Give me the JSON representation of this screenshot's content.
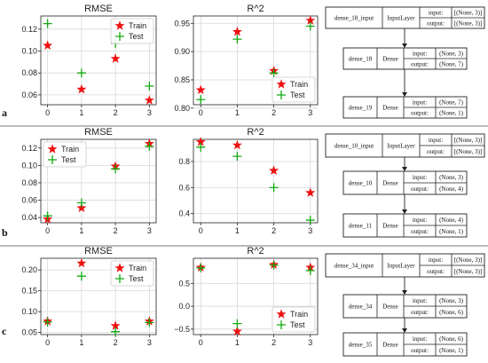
{
  "colors": {
    "train": "#ee1111",
    "test": "#11aa11",
    "grid": "#d8d8d8",
    "axis": "#222222",
    "separator": "#777777"
  },
  "chart_data": [
    {
      "panel": "a",
      "metric": "rmse",
      "type": "scatter",
      "title": "RMSE",
      "x": [
        0,
        1,
        2,
        3
      ],
      "xlim": [
        -0.2,
        3.2
      ],
      "ylim": [
        0.051,
        0.132
      ],
      "xticks": [
        0,
        1,
        2,
        3
      ],
      "yticks": [
        0.06,
        0.08,
        0.1,
        0.12
      ],
      "yticklabels": [
        "0.06",
        "0.08",
        "0.10",
        "0.12"
      ],
      "series": [
        {
          "name": "Train",
          "marker": "star",
          "values": [
            0.105,
            0.065,
            0.093,
            0.055
          ]
        },
        {
          "name": "Test",
          "marker": "plus",
          "values": [
            0.125,
            0.08,
            0.107,
            0.068
          ]
        }
      ],
      "legend": "top-right",
      "grid": true
    },
    {
      "panel": "a",
      "metric": "r2",
      "type": "scatter",
      "title": "R^2",
      "x": [
        0,
        1,
        2,
        3
      ],
      "xlim": [
        -0.2,
        3.2
      ],
      "ylim": [
        0.806,
        0.963
      ],
      "xticks": [
        0,
        1,
        2,
        3
      ],
      "yticks": [
        0.8,
        0.85,
        0.9,
        0.95
      ],
      "yticklabels": [
        "0.80",
        "0.85",
        "0.90",
        "0.95"
      ],
      "series": [
        {
          "name": "Train",
          "marker": "star",
          "values": [
            0.832,
            0.935,
            0.866,
            0.955
          ]
        },
        {
          "name": "Test",
          "marker": "plus",
          "values": [
            0.815,
            0.922,
            0.862,
            0.945
          ]
        }
      ],
      "legend": "bottom-right",
      "grid": true
    },
    {
      "panel": "b",
      "metric": "rmse",
      "type": "scatter",
      "title": "RMSE",
      "x": [
        0,
        1,
        2,
        3
      ],
      "xlim": [
        -0.2,
        3.2
      ],
      "ylim": [
        0.034,
        0.13
      ],
      "xticks": [
        0,
        1,
        2,
        3
      ],
      "yticks": [
        0.04,
        0.06,
        0.08,
        0.1,
        0.12
      ],
      "yticklabels": [
        "0.04",
        "0.06",
        "0.08",
        "0.10",
        "0.12"
      ],
      "series": [
        {
          "name": "Train",
          "marker": "star",
          "values": [
            0.038,
            0.051,
            0.099,
            0.125
          ]
        },
        {
          "name": "Test",
          "marker": "plus",
          "values": [
            0.042,
            0.057,
            0.096,
            0.122
          ]
        }
      ],
      "legend": "top-left",
      "grid": true
    },
    {
      "panel": "b",
      "metric": "r2",
      "type": "scatter",
      "title": "R^2",
      "x": [
        0,
        1,
        2,
        3
      ],
      "xlim": [
        -0.2,
        3.2
      ],
      "ylim": [
        0.33,
        0.97
      ],
      "xticks": [
        0,
        1,
        2,
        3
      ],
      "yticks": [
        0.4,
        0.6,
        0.8
      ],
      "yticklabels": [
        "0.4",
        "0.6",
        "0.8"
      ],
      "series": [
        {
          "name": "Train",
          "marker": "star",
          "values": [
            0.95,
            0.925,
            0.73,
            0.56
          ]
        },
        {
          "name": "Test",
          "marker": "plus",
          "values": [
            0.91,
            0.84,
            0.6,
            0.35
          ]
        }
      ],
      "legend": "none",
      "grid": true
    },
    {
      "panel": "c",
      "metric": "rmse",
      "type": "scatter",
      "title": "RMSE",
      "x": [
        0,
        1,
        2,
        3
      ],
      "xlim": [
        -0.2,
        3.2
      ],
      "ylim": [
        0.045,
        0.228
      ],
      "xticks": [
        0,
        1,
        2,
        3
      ],
      "yticks": [
        0.05,
        0.1,
        0.15,
        0.2
      ],
      "yticklabels": [
        "0.05",
        "0.10",
        "0.15",
        "0.20"
      ],
      "series": [
        {
          "name": "Train",
          "marker": "star",
          "values": [
            0.077,
            0.216,
            0.066,
            0.077
          ]
        },
        {
          "name": "Test",
          "marker": "plus",
          "values": [
            0.075,
            0.185,
            0.052,
            0.074
          ]
        }
      ],
      "legend": "top-right",
      "grid": true
    },
    {
      "panel": "c",
      "metric": "r2",
      "type": "scatter",
      "title": "R^2",
      "x": [
        0,
        1,
        2,
        3
      ],
      "xlim": [
        -0.2,
        3.2
      ],
      "ylim": [
        -0.62,
        1.05
      ],
      "xticks": [
        0,
        1,
        2,
        3
      ],
      "yticks": [
        -0.5,
        0.0,
        0.5
      ],
      "yticklabels": [
        "−0.5",
        "0.0",
        "0.5"
      ],
      "series": [
        {
          "name": "Train",
          "marker": "star",
          "values": [
            0.85,
            -0.55,
            0.91,
            0.85
          ]
        },
        {
          "name": "Test",
          "marker": "plus",
          "values": [
            0.84,
            -0.38,
            0.9,
            0.78
          ]
        }
      ],
      "legend": "bottom-right",
      "grid": true
    }
  ],
  "panels": [
    {
      "label": "a",
      "layers": [
        {
          "name": "dense_18_input",
          "type": "InputLayer",
          "input": "[(None, 3)]",
          "output": "[(None, 3)]"
        },
        {
          "name": "dense_18",
          "type": "Dense",
          "input": "(None, 3)",
          "output": "(None, 7)"
        },
        {
          "name": "dense_19",
          "type": "Dense",
          "input": "(None, 7)",
          "output": "(None, 1)"
        }
      ]
    },
    {
      "label": "b",
      "layers": [
        {
          "name": "dense_10_input",
          "type": "InputLayer",
          "input": "[(None, 3)]",
          "output": "[(None, 3)]"
        },
        {
          "name": "dense_10",
          "type": "Dense",
          "input": "(None, 3)",
          "output": "(None, 4)"
        },
        {
          "name": "dense_11",
          "type": "Dense",
          "input": "(None, 4)",
          "output": "(None, 1)"
        }
      ]
    },
    {
      "label": "c",
      "layers": [
        {
          "name": "dense_34_input",
          "type": "InputLayer",
          "input": "[(None, 3)]",
          "output": "[(None, 3)]"
        },
        {
          "name": "dense_34",
          "type": "Dense",
          "input": "(None, 3)",
          "output": "(None, 6)"
        },
        {
          "name": "dense_35",
          "type": "Dense",
          "input": "(None, 6)",
          "output": "(None, 1)"
        }
      ]
    }
  ],
  "labels": {
    "input": "input:",
    "output": "output:"
  }
}
